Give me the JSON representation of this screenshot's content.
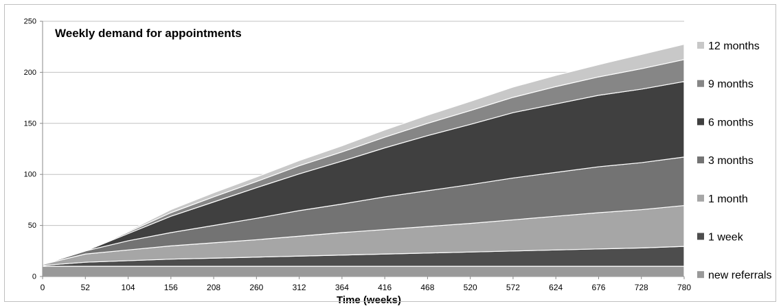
{
  "chart_data": {
    "type": "area",
    "stacked": true,
    "title": "Weekly demand for appointments",
    "xlabel": "Time (weeks)",
    "ylabel": "",
    "xlim": [
      0,
      780
    ],
    "ylim": [
      0,
      250
    ],
    "x_ticks": [
      0,
      52,
      104,
      156,
      208,
      260,
      312,
      364,
      416,
      468,
      520,
      572,
      624,
      676,
      728,
      780
    ],
    "y_ticks": [
      0,
      50,
      100,
      150,
      200,
      250
    ],
    "grid": "horizontal",
    "legend_position": "right",
    "x": [
      0,
      52,
      104,
      156,
      208,
      260,
      312,
      364,
      416,
      468,
      520,
      572,
      624,
      676,
      728,
      780
    ],
    "series": [
      {
        "name": "new referrals",
        "color": "#999999",
        "values": [
          10,
          10,
          10,
          10,
          10,
          10,
          10,
          10,
          10,
          10,
          10,
          10,
          10,
          10,
          10,
          10
        ]
      },
      {
        "name": "1 week",
        "color": "#4d4d4d",
        "values": [
          0.8,
          4,
          5.5,
          7,
          8,
          9,
          10,
          11,
          12,
          13,
          14,
          15,
          16,
          17,
          18,
          19.5
        ]
      },
      {
        "name": "1 month",
        "color": "#a6a6a6",
        "values": [
          1,
          8,
          10.5,
          13,
          15,
          17,
          19.5,
          22,
          24,
          26,
          28,
          30.5,
          33,
          35.5,
          37.5,
          40
        ]
      },
      {
        "name": "3 months",
        "color": "#737373",
        "values": [
          0,
          3,
          9,
          13,
          17,
          21,
          25,
          28,
          32,
          35,
          38,
          41,
          43,
          45,
          46,
          47.5
        ]
      },
      {
        "name": "6 months",
        "color": "#404040",
        "values": [
          0,
          0,
          7,
          16,
          23,
          30,
          36,
          42,
          48,
          54,
          59,
          64,
          67,
          70,
          72,
          74
        ]
      },
      {
        "name": "9 months",
        "color": "#868686",
        "values": [
          0,
          0,
          1.5,
          3.5,
          5,
          6,
          8,
          9,
          10.5,
          12,
          13.5,
          15,
          17,
          18,
          20,
          21.5
        ]
      },
      {
        "name": "12 months",
        "color": "#c8c8c8",
        "values": [
          0,
          0,
          1,
          3,
          4,
          4.5,
          5,
          6,
          7,
          8,
          9,
          10,
          11,
          12,
          14,
          15
        ]
      }
    ]
  }
}
